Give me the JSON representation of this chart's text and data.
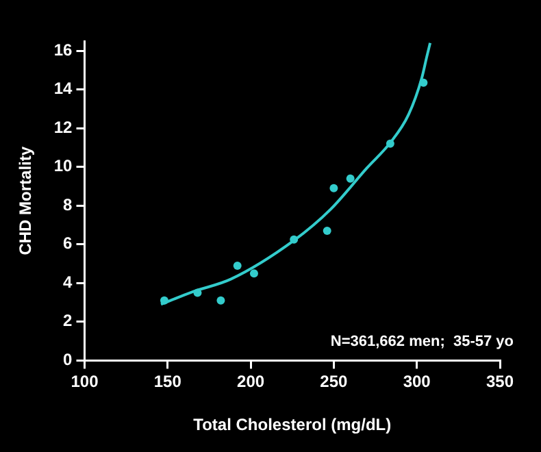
{
  "chart_data": {
    "type": "scatter",
    "xlabel": "Total Cholesterol (mg/dL)",
    "ylabel": "CHD Mortality",
    "xlim": [
      100,
      350
    ],
    "xticks": [
      100,
      150,
      200,
      250,
      300,
      350
    ],
    "ylim": [
      0,
      16.5
    ],
    "yticks": [
      0,
      2,
      4,
      6,
      8,
      10,
      12,
      14,
      16
    ],
    "annotations": [
      "N=361,662 men;  35-57 yo"
    ],
    "series": [
      {
        "type": "scatter",
        "color": "#33cccc",
        "marker": "circle",
        "x": [
          148,
          168,
          182,
          192,
          202,
          226,
          246,
          250,
          260,
          284,
          304
        ],
        "values": [
          3.1,
          3.5,
          3.1,
          4.9,
          4.5,
          6.25,
          6.7,
          8.9,
          9.4,
          11.2,
          14.35
        ]
      },
      {
        "type": "line",
        "color": "#33cccc",
        "marker": "none",
        "x": [
          146,
          165,
          188,
          226,
          248,
          270,
          284,
          295,
          303,
          306,
          308
        ],
        "values": [
          2.9,
          3.55,
          4.2,
          6.2,
          7.8,
          9.95,
          11.25,
          12.7,
          14.6,
          15.7,
          16.4
        ]
      }
    ]
  }
}
